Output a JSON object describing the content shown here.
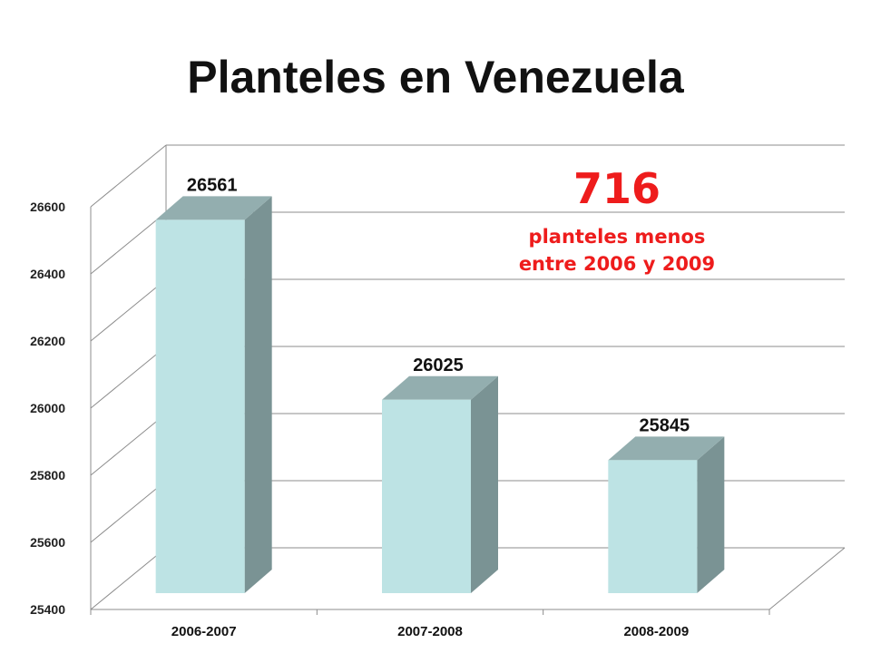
{
  "title": "Planteles en Venezuela",
  "annotation": {
    "number": "716",
    "text": "planteles menos entre 2006 y 2009",
    "color": "#ee1c1c"
  },
  "colors": {
    "bar_front": "#bde3e4",
    "bar_side": "#7a9394",
    "bar_top": "#93aeaf",
    "grid": "#8c8c8c"
  },
  "chart_data": {
    "type": "bar",
    "categories": [
      "2006-2007",
      "2007-2008",
      "2008-2009"
    ],
    "values": [
      26561,
      26025,
      25845
    ],
    "data_labels": [
      "26561",
      "26025",
      "25845"
    ],
    "ylim": [
      25400,
      26600
    ],
    "yticks": [
      25400,
      25600,
      25800,
      26000,
      26200,
      26400,
      26600
    ],
    "grid": true,
    "legend": "none"
  }
}
